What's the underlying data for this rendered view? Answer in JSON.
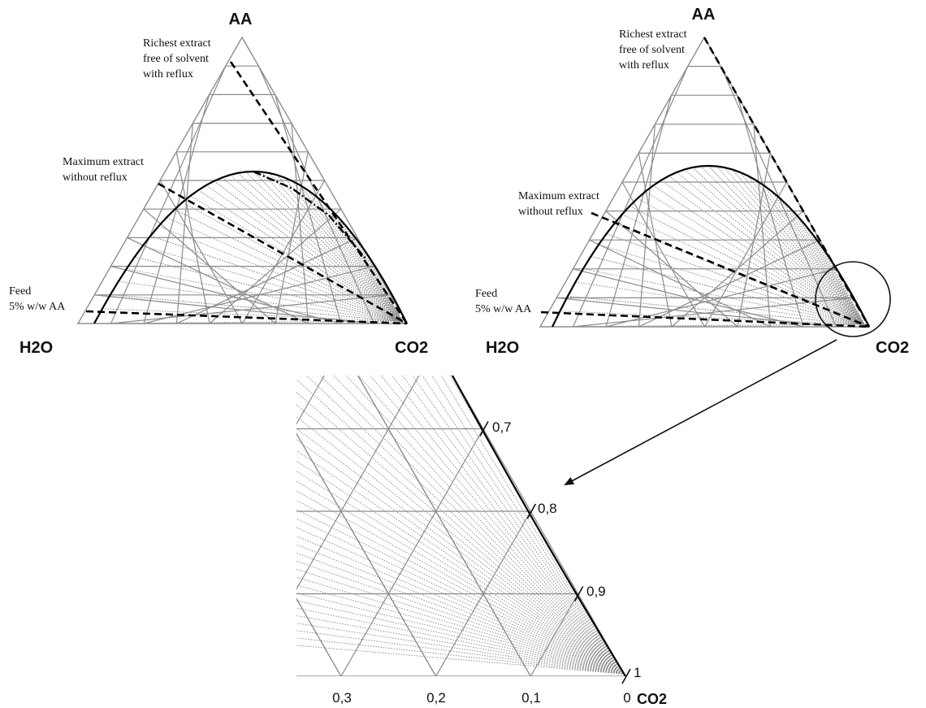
{
  "diagrams": [
    {
      "id": "left",
      "vertex_labels": {
        "top": "AA",
        "left": "H2O",
        "right": "CO2"
      },
      "annotations": [
        {
          "id": "richest",
          "lines": [
            "Richest extract",
            "free of solvent",
            "with reflux"
          ]
        },
        {
          "id": "maximum",
          "lines": [
            "Maximum extract",
            "without reflux"
          ]
        },
        {
          "id": "feed",
          "lines": [
            "Feed",
            "5% w/w AA"
          ]
        }
      ]
    },
    {
      "id": "right",
      "vertex_labels": {
        "top": "AA",
        "left": "H2O",
        "right": "CO2"
      },
      "annotations": [
        {
          "id": "richest",
          "lines": [
            "Richest extract",
            "free of solvent",
            "with reflux"
          ]
        },
        {
          "id": "maximum",
          "lines": [
            "Maximum extract",
            "without reflux"
          ]
        },
        {
          "id": "feed",
          "lines": [
            "Feed",
            "5% w/w AA"
          ]
        }
      ]
    }
  ],
  "zoom": {
    "right_axis_ticks": [
      "0,7",
      "0,8",
      "0,9",
      "1"
    ],
    "bottom_axis_ticks": [
      "0,3",
      "0,2",
      "0,1",
      "0"
    ],
    "corner_label": "CO2"
  }
}
